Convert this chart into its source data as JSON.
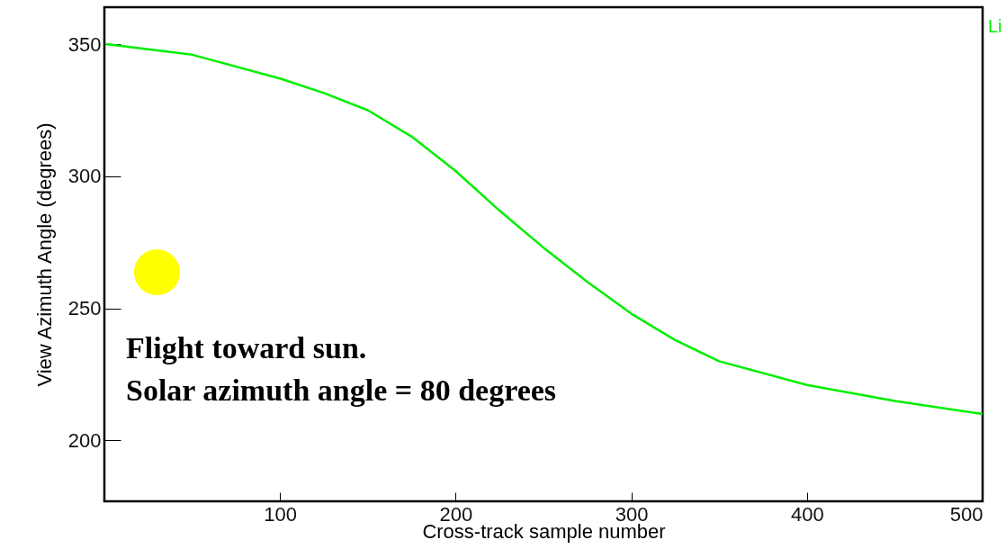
{
  "chart_data": {
    "type": "line",
    "xlabel": "Cross-track sample number",
    "ylabel": "View Azimuth Angle (degrees)",
    "xlim": [
      0,
      500
    ],
    "xticks": [
      100,
      200,
      300,
      400,
      500
    ],
    "ylim": [
      177,
      364
    ],
    "yticks": [
      200,
      250,
      300,
      350
    ],
    "x": [
      1,
      50,
      100,
      125,
      150,
      175,
      200,
      225,
      250,
      275,
      300,
      325,
      350,
      400,
      450,
      500
    ],
    "series": [
      {
        "color": "#00ee00",
        "values": [
          350,
          346,
          337,
          331.5,
          325,
          315,
          302,
          287,
          273,
          260,
          248,
          238,
          230,
          221,
          215,
          210
        ]
      }
    ],
    "annotations": [
      "Flight toward sun.",
      "Solar azimuth angle = 80 degrees",
      "Li"
    ]
  }
}
